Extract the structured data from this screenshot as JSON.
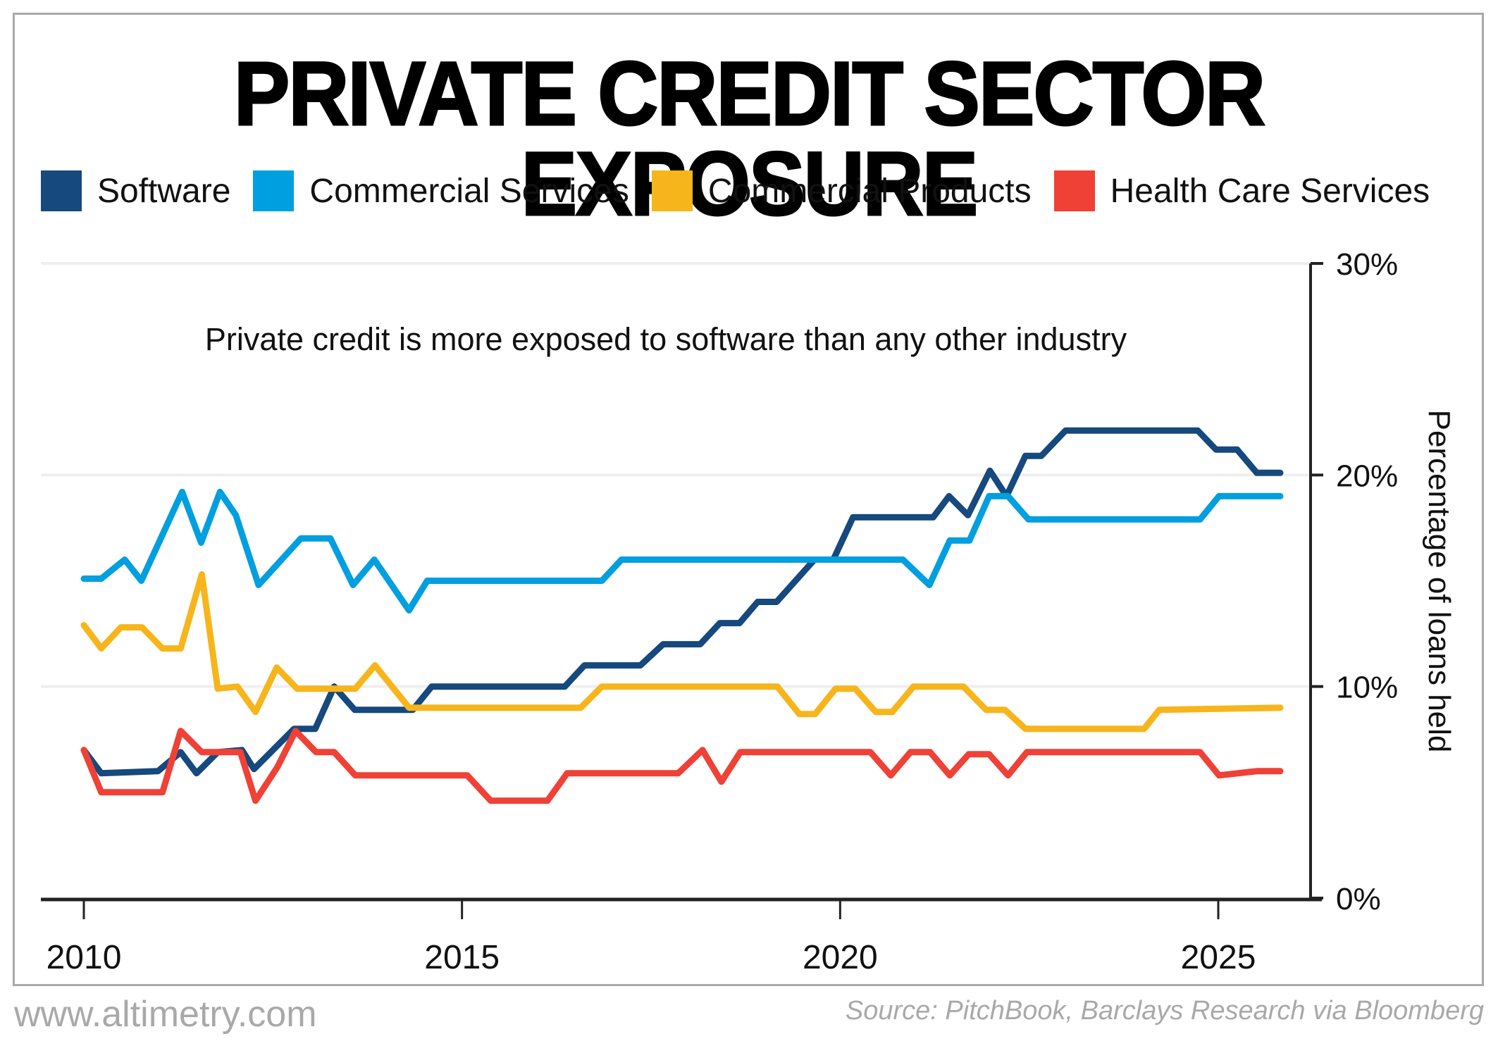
{
  "page": {
    "title": "PRIVATE CREDIT SECTOR EXPOSURE",
    "watermark": "www.altimetry.com",
    "source": "Source: PitchBook, Barclays Research via Bloomberg"
  },
  "chart_data": {
    "type": "line",
    "title": "PRIVATE CREDIT SECTOR EXPOSURE",
    "subtitle": "Private credit is more exposed to software than any other industry",
    "xlabel": "",
    "ylabel": "Percentage of loans held",
    "xlim": [
      2009.4,
      2026.3
    ],
    "ylim": [
      0,
      30
    ],
    "x_ticks": [
      2010,
      2015,
      2020,
      2025
    ],
    "x_tick_labels": [
      "2010",
      "2015",
      "2020",
      "2025"
    ],
    "y_ticks": [
      0,
      10,
      20,
      30
    ],
    "y_tick_labels": [
      "0%",
      "10%",
      "20%",
      "30%"
    ],
    "y_axis_side": "right",
    "grid": "horizontal",
    "legend_position": "top",
    "series": [
      {
        "name": "Software",
        "color": "#16497d",
        "x": [
          2010.0,
          2010.23,
          2010.98,
          2011.28,
          2011.49,
          2011.77,
          2012.09,
          2012.25,
          2012.78,
          2013.06,
          2013.31,
          2013.58,
          2014.35,
          2014.6,
          2016.36,
          2016.62,
          2017.36,
          2017.66,
          2018.15,
          2018.41,
          2018.67,
          2018.91,
          2019.16,
          2019.66,
          2019.91,
          2020.17,
          2021.23,
          2021.44,
          2021.69,
          2021.98,
          2022.2,
          2022.45,
          2022.66,
          2022.98,
          2024.73,
          2024.97,
          2025.25,
          2025.51,
          2025.82
        ],
        "values": [
          7.0,
          5.9,
          6.0,
          6.9,
          5.9,
          6.9,
          7.0,
          6.1,
          8.0,
          8.0,
          10.0,
          8.9,
          8.9,
          10.0,
          10.0,
          11.0,
          11.0,
          12.0,
          12.0,
          13.0,
          13.0,
          14.0,
          14.0,
          16.0,
          16.0,
          18.0,
          18.0,
          19.0,
          18.1,
          20.2,
          19.0,
          20.9,
          20.9,
          22.1,
          22.1,
          21.2,
          21.2,
          20.1,
          20.1
        ]
      },
      {
        "name": "Commercial Services",
        "color": "#009fdf",
        "x": [
          2010.0,
          2010.23,
          2010.54,
          2010.76,
          2011.3,
          2011.55,
          2011.8,
          2012.01,
          2012.31,
          2012.87,
          2013.26,
          2013.56,
          2013.84,
          2014.3,
          2014.54,
          2016.85,
          2017.11,
          2020.83,
          2021.18,
          2021.45,
          2021.71,
          2021.97,
          2022.22,
          2022.49,
          2024.76,
          2025.01,
          2025.82
        ],
        "values": [
          15.1,
          15.1,
          16.0,
          15.0,
          19.2,
          16.8,
          19.2,
          18.1,
          14.8,
          17.0,
          17.0,
          14.8,
          16.0,
          13.6,
          15.0,
          15.0,
          16.0,
          16.0,
          14.8,
          16.9,
          16.9,
          19.0,
          19.0,
          17.9,
          17.9,
          19.0,
          19.0
        ]
      },
      {
        "name": "Commercial Products",
        "color": "#f7b51c",
        "x": [
          2010.0,
          2010.23,
          2010.49,
          2010.77,
          2011.04,
          2011.28,
          2011.56,
          2011.77,
          2012.03,
          2012.27,
          2012.55,
          2012.82,
          2013.59,
          2013.85,
          2014.3,
          2016.57,
          2016.85,
          2019.17,
          2019.46,
          2019.67,
          2019.94,
          2020.2,
          2020.47,
          2020.69,
          2020.97,
          2021.63,
          2021.93,
          2022.18,
          2022.45,
          2024.02,
          2024.22,
          2025.82
        ],
        "values": [
          12.9,
          11.8,
          12.8,
          12.8,
          11.8,
          11.8,
          15.3,
          9.9,
          10.0,
          8.8,
          10.9,
          9.9,
          9.9,
          11.0,
          9.0,
          9.0,
          10.0,
          10.0,
          8.7,
          8.7,
          9.9,
          9.9,
          8.8,
          8.8,
          10.0,
          10.0,
          8.9,
          8.9,
          8.0,
          8.0,
          8.9,
          9.0
        ]
      },
      {
        "name": "Health Care Services",
        "color": "#ef4136",
        "x": [
          2010.0,
          2010.23,
          2011.04,
          2011.28,
          2011.56,
          2012.07,
          2012.27,
          2012.56,
          2012.8,
          2013.07,
          2013.31,
          2013.59,
          2015.07,
          2015.38,
          2016.13,
          2016.39,
          2017.86,
          2018.18,
          2018.43,
          2018.68,
          2020.4,
          2020.67,
          2020.93,
          2021.19,
          2021.45,
          2021.7,
          2021.97,
          2022.22,
          2022.47,
          2024.76,
          2025.01,
          2025.51,
          2025.82
        ],
        "values": [
          7.0,
          5.0,
          5.0,
          7.9,
          6.9,
          6.9,
          4.6,
          6.2,
          7.9,
          6.9,
          6.9,
          5.8,
          5.8,
          4.6,
          4.6,
          5.9,
          5.9,
          7.0,
          5.5,
          6.9,
          6.9,
          5.8,
          6.9,
          6.9,
          5.8,
          6.8,
          6.8,
          5.8,
          6.9,
          6.9,
          5.8,
          6.0,
          6.0
        ]
      }
    ]
  }
}
